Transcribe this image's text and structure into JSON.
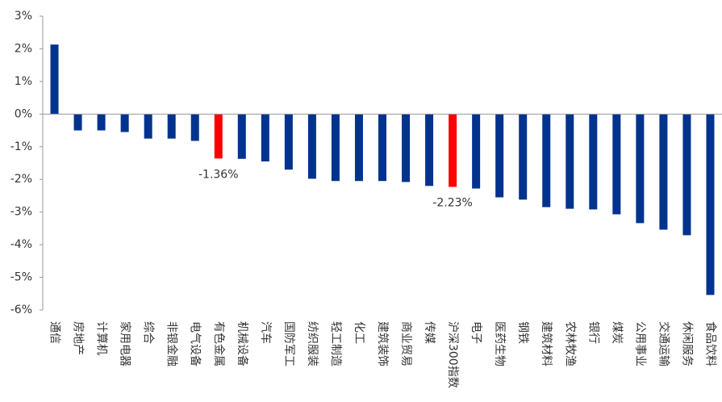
{
  "chart_data": {
    "type": "bar",
    "categories": [
      "通信",
      "房地产",
      "计算机",
      "家用电器",
      "综合",
      "非银金融",
      "电气设备",
      "有色金属",
      "机械设备",
      "汽车",
      "国防军工",
      "纺织服装",
      "轻工制造",
      "化工",
      "建筑装饰",
      "商业贸易",
      "传媒",
      "沪深300指数",
      "电子",
      "医药生物",
      "钢铁",
      "建筑材料",
      "农林牧渔",
      "银行",
      "煤炭",
      "公用事业",
      "交通运输",
      "休闲服务",
      "食品饮料"
    ],
    "values": [
      2.13,
      -0.5,
      -0.5,
      -0.55,
      -0.75,
      -0.75,
      -0.82,
      -1.36,
      -1.37,
      -1.45,
      -1.7,
      -1.98,
      -2.05,
      -2.05,
      -2.05,
      -2.08,
      -2.2,
      -2.23,
      -2.28,
      -2.55,
      -2.62,
      -2.85,
      -2.9,
      -2.92,
      -3.07,
      -3.34,
      -3.54,
      -3.71,
      -5.54
    ],
    "value_labels": [
      null,
      null,
      null,
      null,
      null,
      null,
      null,
      "-1.36%",
      null,
      null,
      null,
      null,
      null,
      null,
      null,
      null,
      null,
      "-2.23%",
      null,
      null,
      null,
      null,
      null,
      null,
      null,
      null,
      null,
      null,
      null
    ],
    "colors": [
      "#00338d",
      "#00338d",
      "#00338d",
      "#00338d",
      "#00338d",
      "#00338d",
      "#00338d",
      "#ff0000",
      "#00338d",
      "#00338d",
      "#00338d",
      "#00338d",
      "#00338d",
      "#00338d",
      "#00338d",
      "#00338d",
      "#00338d",
      "#ff0000",
      "#00338d",
      "#00338d",
      "#00338d",
      "#00338d",
      "#00338d",
      "#00338d",
      "#00338d",
      "#00338d",
      "#00338d",
      "#00338d",
      "#00338d"
    ],
    "ylim": [
      -6,
      3
    ],
    "yticks": [
      {
        "value": -6,
        "label": "-6%"
      },
      {
        "value": -5,
        "label": "-5%"
      },
      {
        "value": -4,
        "label": "-4%"
      },
      {
        "value": -3,
        "label": "-3%"
      },
      {
        "value": -2,
        "label": "-2%"
      },
      {
        "value": -1,
        "label": "-1%"
      },
      {
        "value": 0,
        "label": "0%"
      },
      {
        "value": 1,
        "label": "1%"
      },
      {
        "value": 2,
        "label": "2%"
      },
      {
        "value": 3,
        "label": "3%"
      }
    ],
    "grid": false
  }
}
